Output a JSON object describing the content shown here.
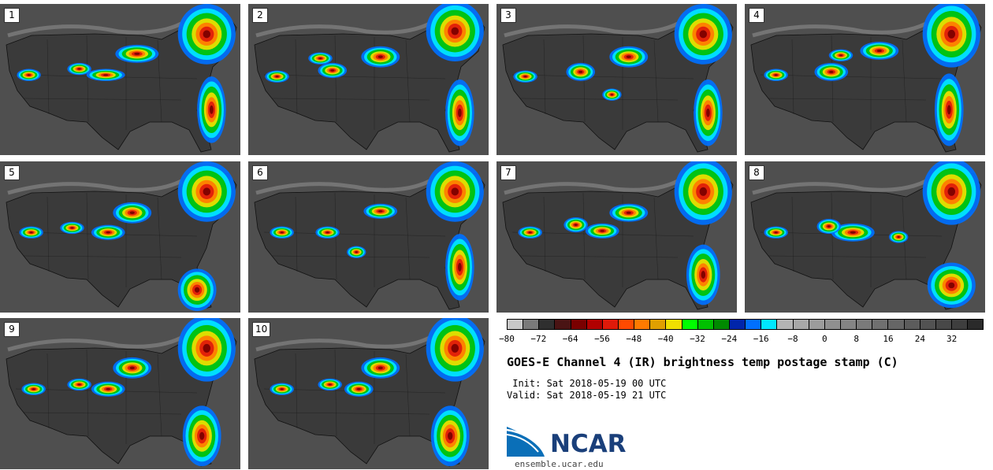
{
  "panels": [
    {
      "label": "1",
      "blobs": [
        [
          0.57,
          0.33,
          0.09,
          0.06
        ],
        [
          0.86,
          0.2,
          0.12,
          0.2
        ],
        [
          0.44,
          0.47,
          0.08,
          0.04
        ],
        [
          0.33,
          0.43,
          0.05,
          0.04
        ],
        [
          0.12,
          0.47,
          0.05,
          0.04
        ],
        [
          0.88,
          0.7,
          0.06,
          0.22
        ]
      ]
    },
    {
      "label": "2",
      "blobs": [
        [
          0.55,
          0.35,
          0.08,
          0.07
        ],
        [
          0.86,
          0.18,
          0.12,
          0.2
        ],
        [
          0.35,
          0.44,
          0.06,
          0.05
        ],
        [
          0.12,
          0.48,
          0.05,
          0.04
        ],
        [
          0.88,
          0.72,
          0.06,
          0.22
        ],
        [
          0.3,
          0.36,
          0.05,
          0.04
        ]
      ]
    },
    {
      "label": "3",
      "blobs": [
        [
          0.55,
          0.35,
          0.08,
          0.07
        ],
        [
          0.86,
          0.2,
          0.12,
          0.2
        ],
        [
          0.35,
          0.45,
          0.06,
          0.06
        ],
        [
          0.48,
          0.6,
          0.04,
          0.04
        ],
        [
          0.12,
          0.48,
          0.05,
          0.04
        ],
        [
          0.88,
          0.72,
          0.06,
          0.22
        ]
      ]
    },
    {
      "label": "4",
      "blobs": [
        [
          0.56,
          0.31,
          0.08,
          0.06
        ],
        [
          0.86,
          0.2,
          0.12,
          0.22
        ],
        [
          0.36,
          0.45,
          0.07,
          0.06
        ],
        [
          0.13,
          0.47,
          0.05,
          0.04
        ],
        [
          0.85,
          0.7,
          0.06,
          0.24
        ],
        [
          0.4,
          0.34,
          0.05,
          0.04
        ]
      ]
    },
    {
      "label": "5",
      "blobs": [
        [
          0.55,
          0.34,
          0.08,
          0.07
        ],
        [
          0.86,
          0.2,
          0.12,
          0.2
        ],
        [
          0.45,
          0.47,
          0.07,
          0.05
        ],
        [
          0.3,
          0.44,
          0.05,
          0.04
        ],
        [
          0.13,
          0.47,
          0.05,
          0.04
        ],
        [
          0.82,
          0.85,
          0.08,
          0.14
        ]
      ]
    },
    {
      "label": "6",
      "blobs": [
        [
          0.55,
          0.33,
          0.07,
          0.05
        ],
        [
          0.86,
          0.2,
          0.12,
          0.2
        ],
        [
          0.45,
          0.6,
          0.04,
          0.04
        ],
        [
          0.33,
          0.47,
          0.05,
          0.04
        ],
        [
          0.14,
          0.47,
          0.05,
          0.04
        ],
        [
          0.88,
          0.7,
          0.06,
          0.22
        ]
      ]
    },
    {
      "label": "7",
      "blobs": [
        [
          0.55,
          0.34,
          0.08,
          0.06
        ],
        [
          0.86,
          0.2,
          0.12,
          0.22
        ],
        [
          0.44,
          0.46,
          0.07,
          0.05
        ],
        [
          0.33,
          0.42,
          0.05,
          0.05
        ],
        [
          0.14,
          0.47,
          0.05,
          0.04
        ],
        [
          0.86,
          0.75,
          0.07,
          0.2
        ]
      ]
    },
    {
      "label": "8",
      "blobs": [
        [
          0.45,
          0.47,
          0.09,
          0.06
        ],
        [
          0.86,
          0.2,
          0.12,
          0.22
        ],
        [
          0.35,
          0.43,
          0.05,
          0.05
        ],
        [
          0.13,
          0.47,
          0.05,
          0.04
        ],
        [
          0.86,
          0.82,
          0.1,
          0.15
        ],
        [
          0.64,
          0.5,
          0.04,
          0.04
        ]
      ]
    },
    {
      "label": "9",
      "blobs": [
        [
          0.55,
          0.33,
          0.08,
          0.07
        ],
        [
          0.86,
          0.2,
          0.12,
          0.22
        ],
        [
          0.45,
          0.47,
          0.07,
          0.05
        ],
        [
          0.33,
          0.44,
          0.05,
          0.04
        ],
        [
          0.14,
          0.47,
          0.05,
          0.04
        ],
        [
          0.84,
          0.78,
          0.08,
          0.2
        ]
      ]
    },
    {
      "label": "10",
      "blobs": [
        [
          0.55,
          0.33,
          0.08,
          0.07
        ],
        [
          0.86,
          0.2,
          0.12,
          0.22
        ],
        [
          0.46,
          0.47,
          0.06,
          0.05
        ],
        [
          0.34,
          0.44,
          0.05,
          0.04
        ],
        [
          0.14,
          0.47,
          0.05,
          0.04
        ],
        [
          0.84,
          0.78,
          0.08,
          0.2
        ]
      ]
    }
  ],
  "colorbar": {
    "colors": [
      "#c8c8c8",
      "#7a7a7a",
      "#2f2f2f",
      "#4a1414",
      "#7a0000",
      "#b10000",
      "#e01a0a",
      "#ff4a00",
      "#ff7a00",
      "#e0a000",
      "#f0e000",
      "#00ff00",
      "#00c000",
      "#008a00",
      "#0025aa",
      "#0070ff",
      "#00e8ff",
      "#b4b4b4",
      "#a8a8a8",
      "#9c9c9c",
      "#909090",
      "#848484",
      "#7a7a7a",
      "#707070",
      "#666666",
      "#5c5c5c",
      "#525252",
      "#484848",
      "#3e3e3e",
      "#2a2a2a"
    ],
    "ticks": [
      "−80",
      "−72",
      "−64",
      "−56",
      "−48",
      "−40",
      "−32",
      "−24",
      "−16",
      "−8",
      "0",
      "8",
      "16",
      "24",
      "32"
    ],
    "tick_values": [
      -80,
      -72,
      -64,
      -56,
      -48,
      -40,
      -32,
      -24,
      -16,
      -8,
      0,
      8,
      16,
      24,
      32
    ],
    "range": [
      -80,
      40
    ]
  },
  "title": "GOES-E Channel 4 (IR) brightness temp postage stamp (C)",
  "init_line": " Init: Sat 2018-05-19 00 UTC",
  "valid_line": "Valid: Sat 2018-05-19 21 UTC",
  "logo": {
    "text": "NCAR",
    "color": "#1a3f7a",
    "accent": "#0a6fb8"
  },
  "site": "ensemble.ucar.edu"
}
